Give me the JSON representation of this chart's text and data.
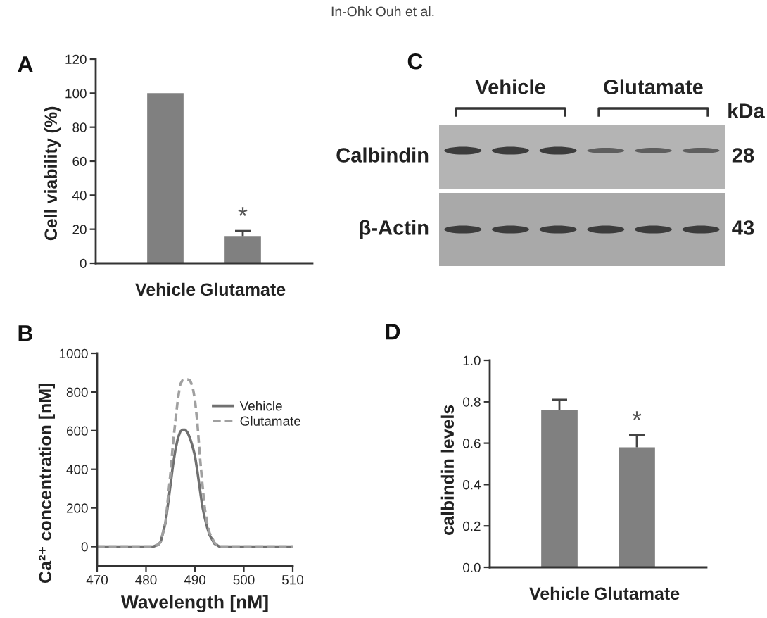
{
  "chart_data": [
    {
      "type": "bar",
      "title": "A",
      "ylabel": "Cell viability (%)",
      "categories": [
        "Vehicle",
        "Glutamate"
      ],
      "values": [
        100,
        16
      ],
      "errors": [
        null,
        [
          16,
          19
        ]
      ],
      "color": "#808080",
      "ylim": [
        0,
        120
      ],
      "yticks": [
        0,
        20,
        40,
        60,
        80,
        100,
        120
      ],
      "annotations": [
        "*",
        "In-Ohk Ouh et al."
      ]
    },
    {
      "type": "other",
      "title": "C",
      "categories": [
        "Vehicle",
        "Glutamate"
      ],
      "y_categories": [
        "Calbindin",
        "β-Actin"
      ],
      "y2_categories": [
        "28",
        "43"
      ],
      "y2label": "kDa"
    },
    {
      "type": "line",
      "title": "B",
      "xlabel": "Wavelength [nM]",
      "ylabel": "Ca²⁺ concentration [nM]",
      "x": [
        470,
        480,
        481.5,
        482.5,
        483,
        484,
        485,
        485.5,
        486,
        486.5,
        487,
        487.5,
        488,
        488.5,
        489,
        489.5,
        490,
        490.5,
        491,
        491.5,
        492,
        492.5,
        493,
        494,
        495,
        500,
        510
      ],
      "series": [
        {
          "name": "Vehicle",
          "color": "#707070",
          "line_style": "solid",
          "values": [
            0,
            0,
            0,
            10,
            25,
            125,
            320,
            420,
            500,
            560,
            595,
            605,
            605,
            590,
            560,
            520,
            470,
            390,
            300,
            210,
            150,
            100,
            60,
            15,
            0,
            0,
            0
          ]
        },
        {
          "name": "Glutamate",
          "color": "#a0a0a0",
          "line_style": "dashed",
          "values": [
            0,
            0,
            0,
            10,
            25,
            128,
            380,
            530,
            650,
            760,
            840,
            862,
            865,
            865,
            860,
            830,
            760,
            640,
            470,
            330,
            200,
            120,
            70,
            20,
            0,
            0,
            0
          ]
        }
      ],
      "xlim": [
        470,
        510
      ],
      "xticks": [
        470,
        480,
        490,
        500,
        510
      ],
      "ylim": [
        -100,
        1000
      ],
      "yticks": [
        0,
        200,
        400,
        600,
        800,
        1000
      ],
      "legend": "top right"
    },
    {
      "type": "bar",
      "title": "D",
      "ylabel": "calbindin levels",
      "categories": [
        "Vehicle",
        "Glutamate"
      ],
      "values": [
        0.76,
        0.58
      ],
      "errors": [
        [
          0.76,
          0.81
        ],
        [
          0.58,
          0.64
        ]
      ],
      "color": "#808080",
      "ylim": [
        0,
        1
      ],
      "yticks": [
        {
          "value": 0,
          "label": "0.0"
        },
        0.2,
        0.4,
        0.6,
        0.8,
        {
          "value": 1,
          "label": "1.0"
        }
      ],
      "annotations": [
        "*"
      ]
    }
  ]
}
